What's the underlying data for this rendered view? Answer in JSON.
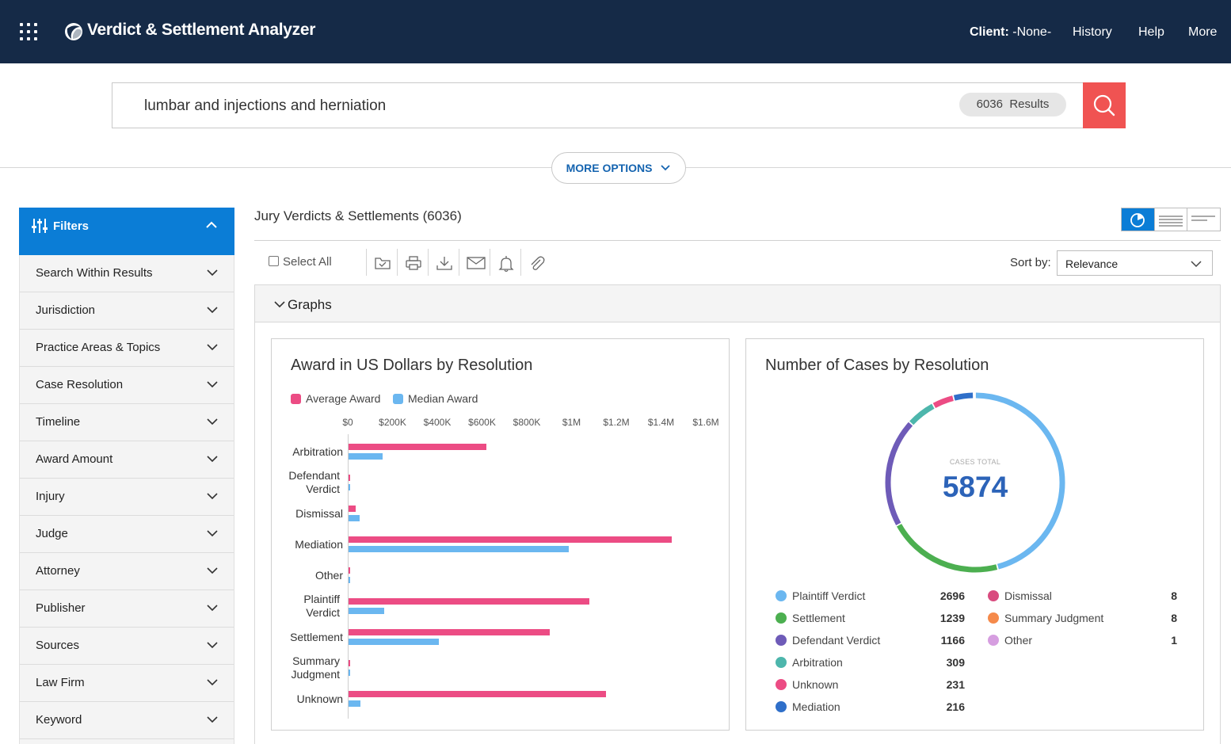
{
  "app": {
    "title": "Verdict & Settlement Analyzer",
    "client_label": "Client:",
    "client_value": "-None-",
    "nav": [
      "History",
      "Help",
      "More"
    ]
  },
  "search": {
    "query": "lumbar and injections and herniation",
    "results_count": "6036",
    "results_label": "Results",
    "more_options": "MORE OPTIONS"
  },
  "filters": {
    "title": "Filters",
    "items": [
      "Search Within Results",
      "Jurisdiction",
      "Practice Areas & Topics",
      "Case Resolution",
      "Timeline",
      "Award Amount",
      "Injury",
      "Judge",
      "Attorney",
      "Publisher",
      "Sources",
      "Law Firm",
      "Keyword"
    ]
  },
  "main": {
    "title": "Jury Verdicts & Settlements (6036)",
    "select_all": "Select All",
    "sort_label": "Sort by:",
    "sort_value": "Relevance",
    "graphs_label": "Graphs"
  },
  "colors": {
    "accent": "#0b7dd6",
    "search_button": "#f05352",
    "average": "#ec4c84",
    "median": "#6bb7f0"
  },
  "chart_data": [
    {
      "type": "bar",
      "orientation": "horizontal",
      "title": "Award in US Dollars by Resolution",
      "tick_labels": [
        "$0",
        "$200K",
        "$400K",
        "$600K",
        "$800K",
        "$1M",
        "$1.2M",
        "$1.4M",
        "$1.6M"
      ],
      "xlim": [
        0,
        1600000
      ],
      "categories": [
        "Arbitration",
        "Defendant Verdict",
        "Dismissal",
        "Mediation",
        "Other",
        "Plaintiff Verdict",
        "Settlement",
        "Summary Judgment",
        "Unknown"
      ],
      "series": [
        {
          "name": "Average Award",
          "color": "#ec4c84",
          "values": [
            615000,
            8000,
            32000,
            1445000,
            6000,
            1075000,
            900000,
            6000,
            1150000
          ]
        },
        {
          "name": "Median Award",
          "color": "#6bb7f0",
          "values": [
            152000,
            5000,
            50000,
            985000,
            5000,
            160000,
            402000,
            5000,
            53000
          ]
        }
      ],
      "legend_position": "top-left"
    },
    {
      "type": "pie",
      "variant": "donut",
      "title": "Number of Cases by Resolution",
      "center_label": "CASES TOTAL",
      "center_value": "5874",
      "slices": [
        {
          "name": "Plaintiff Verdict",
          "value": 2696,
          "color": "#6bb7f0"
        },
        {
          "name": "Settlement",
          "value": 1239,
          "color": "#4caf50"
        },
        {
          "name": "Defendant Verdict",
          "value": 1166,
          "color": "#6e5bb8"
        },
        {
          "name": "Arbitration",
          "value": 309,
          "color": "#4db6ac"
        },
        {
          "name": "Unknown",
          "value": 231,
          "color": "#ec4c84"
        },
        {
          "name": "Mediation",
          "value": 216,
          "color": "#2f6fc9"
        },
        {
          "name": "Dismissal",
          "value": 8,
          "color": "#d94c7f"
        },
        {
          "name": "Summary Judgment",
          "value": 8,
          "color": "#f58a4b"
        },
        {
          "name": "Other",
          "value": 1,
          "color": "#d69ee0"
        }
      ]
    }
  ]
}
